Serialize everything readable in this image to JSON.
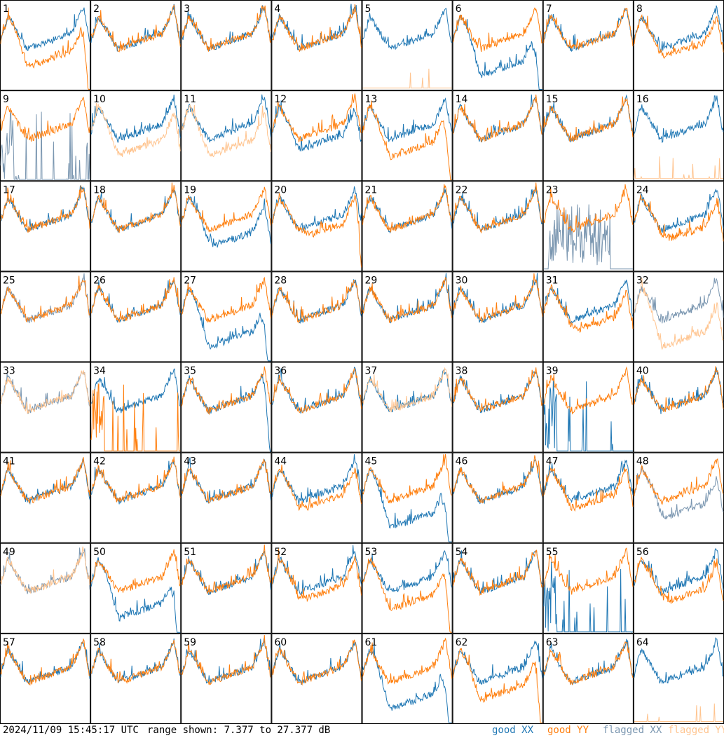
{
  "chart_data": {
    "type": "line",
    "panels": [
      {
        "label": "1",
        "xx": "good",
        "yy": "good",
        "shape": "y_drop"
      },
      {
        "label": "2",
        "xx": "good",
        "yy": "good",
        "shape": "normal"
      },
      {
        "label": "3",
        "xx": "good",
        "yy": "good",
        "shape": "normal"
      },
      {
        "label": "4",
        "xx": "good",
        "yy": "good",
        "shape": "normal"
      },
      {
        "label": "5",
        "xx": "good",
        "yy": "flagged",
        "shape": "y_flat"
      },
      {
        "label": "6",
        "xx": "good",
        "yy": "good",
        "shape": "x_drop"
      },
      {
        "label": "7",
        "xx": "good",
        "yy": "good",
        "shape": "normal"
      },
      {
        "label": "8",
        "xx": "good",
        "yy": "good",
        "shape": "y_drop_mild"
      },
      {
        "label": "9",
        "xx": "flagged",
        "yy": "good",
        "shape": "x_spikes"
      },
      {
        "label": "10",
        "xx": "good",
        "yy": "flagged",
        "shape": "y_low_flag"
      },
      {
        "label": "11",
        "xx": "good",
        "yy": "flagged",
        "shape": "y_low_flag"
      },
      {
        "label": "12",
        "xx": "good",
        "yy": "good",
        "shape": "x_drop_mild"
      },
      {
        "label": "13",
        "xx": "good",
        "yy": "good",
        "shape": "y_drop"
      },
      {
        "label": "14",
        "xx": "good",
        "yy": "good",
        "shape": "normal"
      },
      {
        "label": "15",
        "xx": "good",
        "yy": "good",
        "shape": "normal"
      },
      {
        "label": "16",
        "xx": "good",
        "yy": "flagged",
        "shape": "y_flat"
      },
      {
        "label": "17",
        "xx": "good",
        "yy": "good",
        "shape": "normal"
      },
      {
        "label": "18",
        "xx": "good",
        "yy": "good",
        "shape": "normal"
      },
      {
        "label": "19",
        "xx": "good",
        "yy": "good",
        "shape": "x_low"
      },
      {
        "label": "20",
        "xx": "good",
        "yy": "good",
        "shape": "y_low_end"
      },
      {
        "label": "21",
        "xx": "good",
        "yy": "good",
        "shape": "normal"
      },
      {
        "label": "22",
        "xx": "good",
        "yy": "good",
        "shape": "normal"
      },
      {
        "label": "23",
        "xx": "flagged",
        "yy": "good",
        "shape": "x_noise"
      },
      {
        "label": "24",
        "xx": "good",
        "yy": "good",
        "shape": "y_low"
      },
      {
        "label": "25",
        "xx": "flagged",
        "yy": "good",
        "shape": "normal"
      },
      {
        "label": "26",
        "xx": "good",
        "yy": "good",
        "shape": "normal"
      },
      {
        "label": "27",
        "xx": "good",
        "yy": "good",
        "shape": "x_drop"
      },
      {
        "label": "28",
        "xx": "good",
        "yy": "good",
        "shape": "normal"
      },
      {
        "label": "29",
        "xx": "good",
        "yy": "good",
        "shape": "normal"
      },
      {
        "label": "30",
        "xx": "good",
        "yy": "good",
        "shape": "normal"
      },
      {
        "label": "31",
        "xx": "good",
        "yy": "good",
        "shape": "y_low"
      },
      {
        "label": "32",
        "xx": "flagged",
        "yy": "flagged",
        "shape": "y_flag_hi"
      },
      {
        "label": "33",
        "xx": "flagged",
        "yy": "flagged",
        "shape": "normal"
      },
      {
        "label": "34",
        "xx": "good",
        "yy": "good",
        "shape": "y_spikes"
      },
      {
        "label": "35",
        "xx": "good",
        "yy": "good",
        "shape": "x_low_end"
      },
      {
        "label": "36",
        "xx": "good",
        "yy": "good",
        "shape": "normal"
      },
      {
        "label": "37",
        "xx": "good",
        "yy": "flagged",
        "shape": "normal"
      },
      {
        "label": "38",
        "xx": "good",
        "yy": "good",
        "shape": "normal"
      },
      {
        "label": "39",
        "xx": "good",
        "yy": "good",
        "shape": "x_spikes"
      },
      {
        "label": "40",
        "xx": "good",
        "yy": "good",
        "shape": "normal"
      },
      {
        "label": "41",
        "xx": "good",
        "yy": "good",
        "shape": "normal"
      },
      {
        "label": "42",
        "xx": "good",
        "yy": "good",
        "shape": "normal"
      },
      {
        "label": "43",
        "xx": "good",
        "yy": "good",
        "shape": "normal"
      },
      {
        "label": "44",
        "xx": "good",
        "yy": "good",
        "shape": "y_drop_mild"
      },
      {
        "label": "45",
        "xx": "good",
        "yy": "good",
        "shape": "x_drop"
      },
      {
        "label": "46",
        "xx": "good",
        "yy": "good",
        "shape": "normal"
      },
      {
        "label": "47",
        "xx": "good",
        "yy": "good",
        "shape": "y_drop_mild"
      },
      {
        "label": "48",
        "xx": "flagged",
        "yy": "good",
        "shape": "x_low"
      },
      {
        "label": "49",
        "xx": "flagged",
        "yy": "flagged",
        "shape": "normal"
      },
      {
        "label": "50",
        "xx": "good",
        "yy": "good",
        "shape": "x_drop"
      },
      {
        "label": "51",
        "xx": "good",
        "yy": "good",
        "shape": "normal"
      },
      {
        "label": "52",
        "xx": "good",
        "yy": "good",
        "shape": "y_drop_mild"
      },
      {
        "label": "53",
        "xx": "good",
        "yy": "good",
        "shape": "y_drop"
      },
      {
        "label": "54",
        "xx": "good",
        "yy": "good",
        "shape": "normal"
      },
      {
        "label": "55",
        "xx": "good",
        "yy": "good",
        "shape": "x_spikes"
      },
      {
        "label": "56",
        "xx": "good",
        "yy": "good",
        "shape": "y_low"
      },
      {
        "label": "57",
        "xx": "good",
        "yy": "good",
        "shape": "normal"
      },
      {
        "label": "58",
        "xx": "good",
        "yy": "good",
        "shape": "normal"
      },
      {
        "label": "59",
        "xx": "good",
        "yy": "good",
        "shape": "normal"
      },
      {
        "label": "60",
        "xx": "good",
        "yy": "good",
        "shape": "normal"
      },
      {
        "label": "61",
        "xx": "good",
        "yy": "good",
        "shape": "x_drop"
      },
      {
        "label": "62",
        "xx": "good",
        "yy": "good",
        "shape": "y_drop"
      },
      {
        "label": "63",
        "xx": "good",
        "yy": "good",
        "shape": "normal"
      },
      {
        "label": "64",
        "xx": "good",
        "yy": "flagged",
        "shape": "y_flat"
      }
    ],
    "grid": {
      "rows": 8,
      "cols": 8
    },
    "ylim": [
      7.377,
      27.377
    ],
    "colors": {
      "good_xx": "#1f77b4",
      "good_yy": "#ff7f0e",
      "flagged_xx": "#7a96b0",
      "flagged_yy": "#ffc48f"
    }
  },
  "footer": {
    "timestamp": "2024/11/09 15:45:17 UTC",
    "range": "range shown: 7.377 to 27.377 dB"
  },
  "legend": {
    "good_xx": "good XX",
    "good_yy": "good YY",
    "flagged_xx": "flagged XX",
    "flagged_yy": "flagged YY"
  }
}
